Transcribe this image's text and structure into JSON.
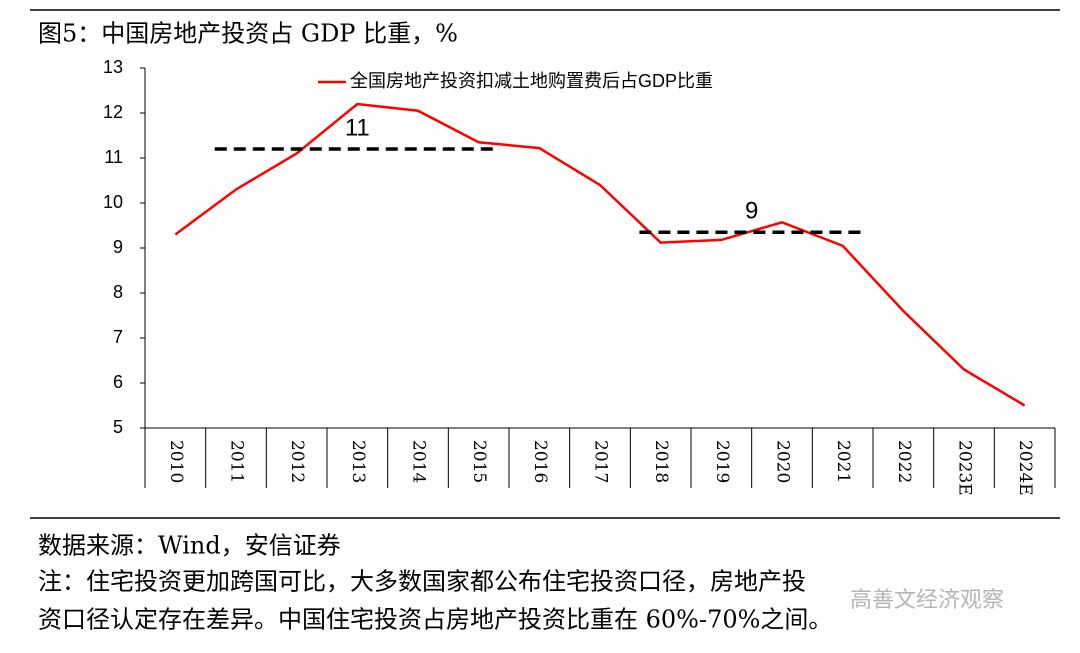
{
  "chart_data": {
    "type": "line",
    "title": "图5：中国房地产投资占 GDP 比重，%",
    "categories": [
      "2010",
      "2011",
      "2012",
      "2013",
      "2014",
      "2015",
      "2016",
      "2017",
      "2018",
      "2019",
      "2020",
      "2021",
      "2022",
      "2023E",
      "2024E"
    ],
    "series": [
      {
        "name": "全国房地产投资扣减土地购置费后占GDP比重",
        "color": "#ff0000",
        "values": [
          9.3,
          10.3,
          11.1,
          12.2,
          12.05,
          11.35,
          11.22,
          10.4,
          9.12,
          9.18,
          9.57,
          9.05,
          7.6,
          6.3,
          5.5
        ]
      }
    ],
    "ylim": [
      5,
      13
    ],
    "yticks": [
      5,
      6,
      7,
      8,
      9,
      10,
      11,
      12,
      13
    ],
    "reference_lines": [
      {
        "label": "11",
        "value": 11.2,
        "start": "2011",
        "end": "2015"
      },
      {
        "label": "9",
        "value": 9.35,
        "start": "2018",
        "end": "2021"
      }
    ],
    "source": "数据来源：Wind，安信证券",
    "note": [
      "注：住宅投资更加跨国可比，大多数国家都公布住宅投资口径，房地产投",
      "资口径认定存在差异。中国住宅投资占房地产投资比重在 60%-70%之间。"
    ],
    "watermark": "高善文经济观察"
  }
}
